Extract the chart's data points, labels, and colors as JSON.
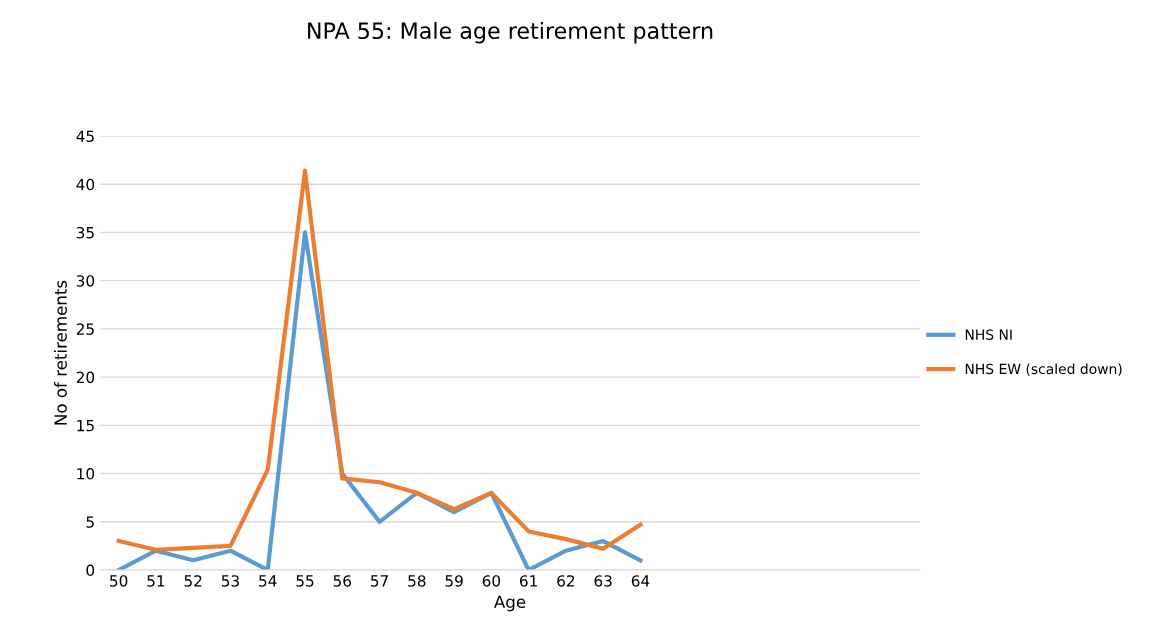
{
  "chart_data": {
    "type": "line",
    "title": "NPA 55: Male age retirement pattern",
    "xlabel": "Age",
    "ylabel": "No of retirements",
    "categories": [
      "50",
      "51",
      "52",
      "53",
      "54",
      "55",
      "56",
      "57",
      "58",
      "59",
      "60",
      "61",
      "62",
      "63",
      "64",
      null,
      null,
      null,
      null,
      null,
      null,
      null
    ],
    "series": [
      {
        "name": "NHS NI",
        "color": "#5b9bd5",
        "values": [
          0,
          2,
          1,
          2,
          0,
          35,
          10,
          5,
          8,
          6,
          8,
          0,
          2,
          3,
          1,
          null,
          null,
          null,
          null,
          null,
          null,
          null
        ]
      },
      {
        "name": "NHS EW (scaled down)",
        "color": "#ed7d31",
        "values": [
          3.0,
          2.1,
          2.3,
          2.5,
          10.4,
          41.4,
          9.5,
          9.1,
          8.0,
          6.3,
          8.0,
          4.0,
          3.2,
          2.2,
          4.7,
          null,
          null,
          null,
          null,
          null,
          null,
          null
        ]
      }
    ],
    "ylim": [
      0,
      45
    ],
    "yticks": [
      0,
      5,
      10,
      15,
      20,
      25,
      30,
      35,
      40,
      45
    ],
    "grid": "y",
    "legend": "right",
    "marker": "none",
    "line_style": "solid"
  }
}
